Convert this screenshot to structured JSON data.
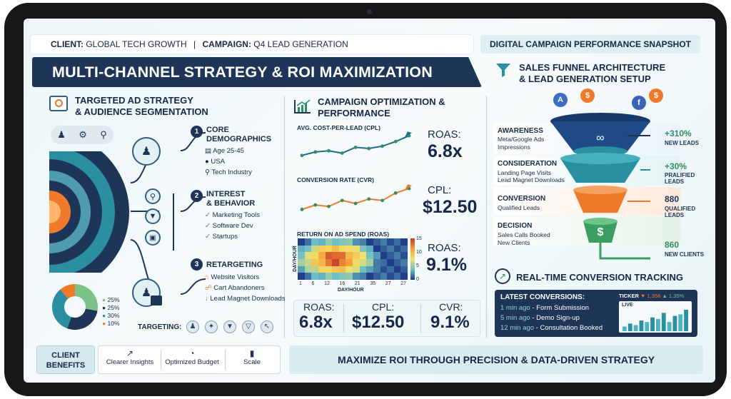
{
  "header": {
    "client_label": "CLIENT:",
    "client_value": "GLOBAL TECH GROWTH",
    "campaign_label": "CAMPAIGN:",
    "campaign_value": "Q4 LEAD GENERATION",
    "snapshot": "DIGITAL CAMPAIGN PERFORMANCE SNAPSHOT"
  },
  "banner": {
    "title": "MULTI-CHANNEL STRATEGY & ROI MAXIMIZATION"
  },
  "left": {
    "title_line1": "TARGETED AD STRATEGY",
    "title_line2": "& AUDIENCE SEGMENTATION",
    "sections": [
      {
        "num": "1",
        "title_line1": "CORE",
        "title_line2": "DEMOGRAPHICS",
        "items": [
          "Age 25-45",
          "USA",
          "Tech Industry"
        ]
      },
      {
        "num": "2",
        "title_line1": "INTEREST",
        "title_line2": "& BEHAVIOR",
        "items": [
          "Marketing Tools",
          "Software Dev",
          "Startups"
        ]
      },
      {
        "num": "3",
        "title_line1": "RETARGETING",
        "title_line2": "",
        "items": [
          "Website Visitors",
          "Cart Abandoners",
          "Lead Magnet Downloads"
        ]
      }
    ],
    "donut_legend": [
      "25%",
      "25%",
      "30%",
      "10%"
    ],
    "targeting_label": "TARGETING:"
  },
  "middle": {
    "title_line1": "CAMPAIGN OPTIMIZATION &",
    "title_line2": "PERFORMANCE",
    "cpl_chart_title": "AVG. COST-PER-LEAD (CPL)",
    "cvr_chart_title": "CONVERSION RATE (CVR)",
    "roas_chart_title": "RETURN ON AD SPEND (ROAS)",
    "side1_label": "ROAS:",
    "side1_value": "6.8x",
    "side2_label": "CPL:",
    "side2_value": "$12.50",
    "side3_label": "ROAS:",
    "side3_value": "9.1%",
    "heat_xlabel": "DAY/HOUR",
    "heat_ylabel": "DAY/HOUR",
    "heat_xticks": [
      "1",
      "6",
      "12",
      "16",
      "21",
      "35",
      "27",
      "27"
    ],
    "heat_scale": [
      "15",
      "10",
      "5",
      "0"
    ],
    "bottom": [
      {
        "label": "ROAS:",
        "value": "6.8x"
      },
      {
        "label": "CPL:",
        "value": "$12.50"
      },
      {
        "label": "CVR:",
        "value": "9.1%"
      }
    ]
  },
  "right": {
    "title_line1": "SALES FUNNEL ARCHITECTURE",
    "title_line2": "& LEAD GENERATION SETUP",
    "stages": [
      {
        "title": "AWARENESS",
        "lines": [
          "Meta/Google Ads",
          "Impressions"
        ],
        "gain": "+310%",
        "gain_sub": [
          "NEW LEADS"
        ]
      },
      {
        "title": "CONSIDERATION",
        "lines": [
          "Landing Page Visits",
          "Lead Magnet Downloads"
        ],
        "gain": "+30%",
        "gain_sub": [
          "PRALIFIED",
          "LEADS"
        ]
      },
      {
        "title": "CONVERSION",
        "lines": [
          "Qualified Leads"
        ],
        "gain": "880",
        "gain_sub": [
          "QUALIFIED",
          "LEADS"
        ]
      },
      {
        "title": "DECISION",
        "lines": [
          "Sales Calls Booked",
          "New Clients"
        ],
        "gain": "860",
        "gain_sub": [
          "NEW CLIENTS"
        ]
      }
    ],
    "tracking_title": "REAL-TIME CONVERSION TRACKING",
    "latest_title": "LATEST CONVERSIONS:",
    "conversions": [
      {
        "time": "1 min ago",
        "event": " - Form Submission"
      },
      {
        "time": "5 min ago",
        "event": " - Demo Sign-up"
      },
      {
        "time": "12 min ago",
        "event": " - Consultation Booked"
      }
    ],
    "ticker_label": "TICKER",
    "ticker_down": "▼ 1,358",
    "ticker_up": "▲ 1,35%",
    "live_label": "LIVE"
  },
  "footer": {
    "client_benefits_line1": "CLIENT",
    "client_benefits_line2": "BENEFITS",
    "benefits": [
      "Clearer Insights",
      "Optimized Budget",
      "Scale"
    ],
    "tagline": "MAXIMIZE ROI THROUGH PRECISION & DATA-DRIVEN STRATEGY"
  },
  "icons": {
    "filter": "filter-funnel-icon",
    "chart": "trend-chart-icon",
    "target": "target-icon",
    "users": "users-icon",
    "gear": "gear-icon",
    "location": "location-pin-icon"
  },
  "colors": {
    "navy": "#1f3557",
    "accent_orange": "#f07a2a",
    "accent_green": "#2f8f5e",
    "teal": "#2a8fa0"
  },
  "chart_data": [
    {
      "type": "line",
      "title": "AVG. COST-PER-LEAD (CPL)",
      "series": [
        {
          "values": [
            10,
            13,
            14,
            12,
            17,
            16,
            18,
            22,
            27
          ]
        }
      ]
    },
    {
      "type": "line",
      "title": "CONVERSION RATE (CVR)",
      "series": [
        {
          "values": [
            6,
            9,
            8,
            12,
            10,
            13,
            12,
            17,
            20
          ]
        }
      ]
    },
    {
      "type": "heatmap",
      "title": "RETURN ON AD SPEND (ROAS)",
      "xlabel": "DAY/HOUR",
      "ylabel": "DAY/HOUR",
      "range": [
        0,
        15
      ]
    },
    {
      "type": "pie",
      "values": [
        25,
        25,
        30,
        10
      ]
    },
    {
      "type": "bar",
      "title": "LIVE",
      "values": [
        3,
        5,
        4,
        7,
        6,
        9,
        8,
        12,
        6,
        10,
        11,
        14
      ]
    }
  ]
}
